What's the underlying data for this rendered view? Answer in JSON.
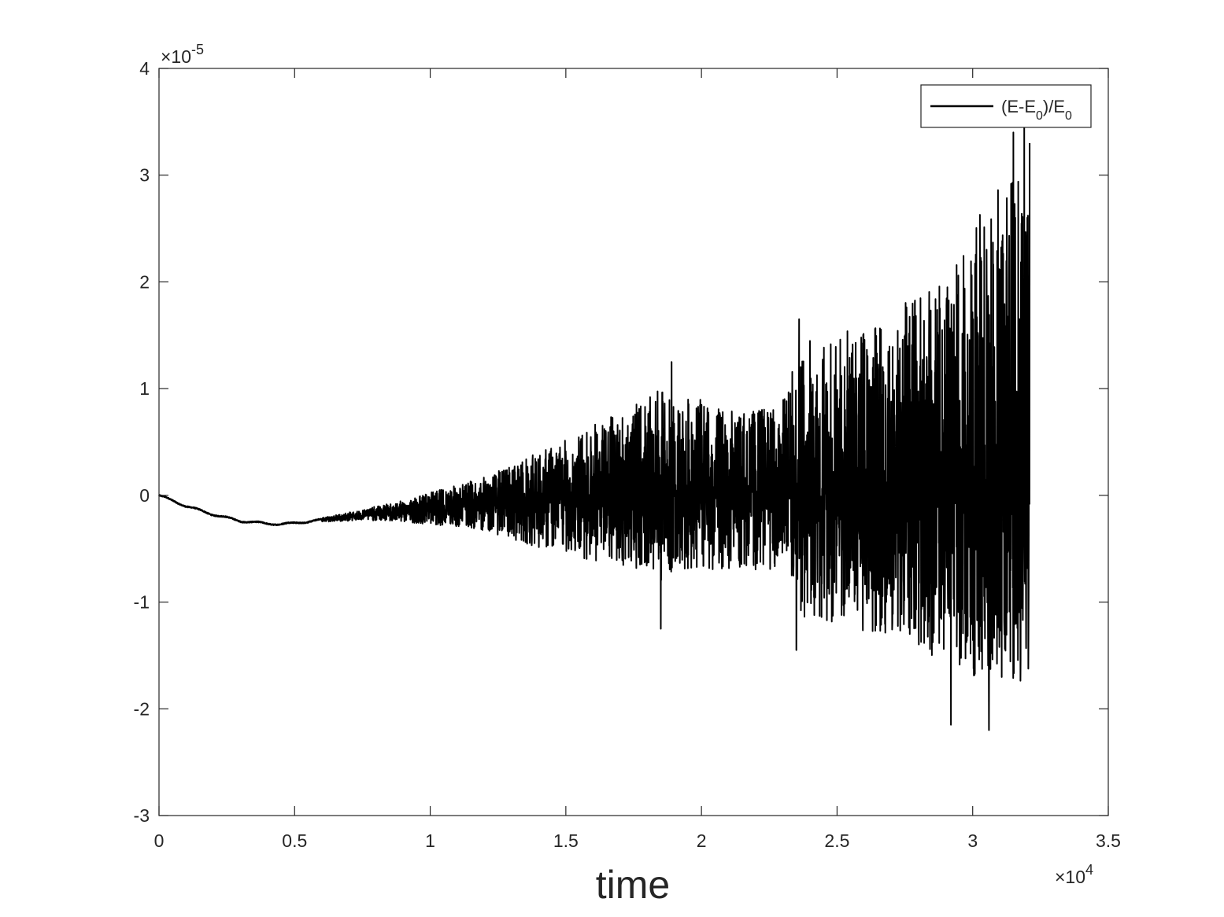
{
  "chart_data": {
    "type": "line",
    "title": "",
    "xlabel": "time",
    "ylabel": "",
    "x_multiplier_label": "×10",
    "x_multiplier_exp": "4",
    "y_multiplier_label": "×10",
    "y_multiplier_exp": "-5",
    "xlim": [
      0,
      35000
    ],
    "ylim": [
      -3e-05,
      4e-05
    ],
    "x_ticks": [
      0,
      5000,
      10000,
      15000,
      20000,
      25000,
      30000,
      35000
    ],
    "x_tick_labels": [
      "0",
      "0.5",
      "1",
      "1.5",
      "2",
      "2.5",
      "3",
      "3.5"
    ],
    "y_ticks": [
      -3e-05,
      -2e-05,
      -1e-05,
      0,
      1e-05,
      2e-05,
      3e-05,
      4e-05
    ],
    "y_tick_labels": [
      "-3",
      "-2",
      "-1",
      "0",
      "1",
      "2",
      "3",
      "4"
    ],
    "grid": false,
    "box": true,
    "legend": {
      "placement": "top-right",
      "entries": [
        {
          "text": "(E-E",
          "sub1": "0",
          "mid": ")/E",
          "sub2": "0"
        }
      ]
    },
    "series": [
      {
        "label": "(E-E0)/E0",
        "color": "#000000",
        "trend_x": [
          0,
          500,
          1000,
          1500,
          2000,
          3000,
          4000,
          4500,
          5000,
          6000,
          7000,
          8000,
          9000,
          10000,
          11000,
          12000,
          13000,
          14000,
          15000,
          16000,
          17000,
          18000,
          19000,
          20000,
          21000,
          22000,
          23000,
          24000,
          25000,
          26000,
          27000,
          28000,
          29000,
          30000,
          31000,
          32000
        ],
        "trend_y": [
          0,
          -5e-07,
          -1e-06,
          -1.4e-06,
          -1.8e-06,
          -2.4e-06,
          -2.65e-06,
          -2.7e-06,
          -2.6e-06,
          -2.3e-06,
          -2e-06,
          -1.7e-06,
          -1.5e-06,
          -1.2e-06,
          -1e-06,
          -8e-07,
          -6e-07,
          -4e-07,
          -3e-07,
          -2e-07,
          -1e-07,
          0,
          0,
          0,
          0,
          0,
          0,
          0,
          0,
          0,
          0,
          0,
          0,
          0,
          0,
          0
        ],
        "band_x": [
          0,
          3000,
          6000,
          7500,
          9000,
          10000,
          11000,
          12000,
          13000,
          14000,
          15000,
          15500,
          16000,
          17000,
          18000,
          18500,
          19000,
          20000,
          21000,
          22000,
          23000,
          23500,
          24000,
          25000,
          26000,
          27000,
          28000,
          29000,
          30000,
          31000,
          32000
        ],
        "band_upper": [
          0,
          1e-07,
          2e-07,
          5e-07,
          1e-06,
          1.5e-06,
          2e-06,
          2.5e-06,
          3.5e-06,
          4.5e-06,
          5.5e-06,
          6e-06,
          7e-06,
          8e-06,
          9e-06,
          1e-05,
          9e-06,
          9e-06,
          8e-06,
          8e-06,
          9e-06,
          1.3e-05,
          1.5e-05,
          1.5e-05,
          1.6e-05,
          1.7e-05,
          1.9e-05,
          2e-05,
          2.5e-05,
          3e-05,
          3e-05
        ],
        "band_lower": [
          0,
          -1e-07,
          -2e-07,
          -5e-07,
          -1e-06,
          -1.5e-06,
          -2e-06,
          -2.5e-06,
          -3.5e-06,
          -4.5e-06,
          -5e-06,
          -5.5e-06,
          -6e-06,
          -6.5e-06,
          -7e-06,
          -8e-06,
          -7e-06,
          -7e-06,
          -7e-06,
          -7e-06,
          -7e-06,
          -1.1e-05,
          -1.2e-05,
          -1.2e-05,
          -1.3e-05,
          -1.3e-05,
          -1.4e-05,
          -1.6e-05,
          -1.7e-05,
          -1.8e-05,
          -1.8e-05
        ],
        "extremes": [
          {
            "x": 18500,
            "y": -1.25e-05
          },
          {
            "x": 18900,
            "y": 1.25e-05
          },
          {
            "x": 23500,
            "y": -1.45e-05
          },
          {
            "x": 23600,
            "y": 1.65e-05
          },
          {
            "x": 29200,
            "y": -2.15e-05
          },
          {
            "x": 30600,
            "y": -2.2e-05
          },
          {
            "x": 31500,
            "y": 3.4e-05
          },
          {
            "x": 31900,
            "y": 3.45e-05
          },
          {
            "x": 32100,
            "y": 3.3e-05
          }
        ],
        "x_end": 32100
      }
    ]
  }
}
